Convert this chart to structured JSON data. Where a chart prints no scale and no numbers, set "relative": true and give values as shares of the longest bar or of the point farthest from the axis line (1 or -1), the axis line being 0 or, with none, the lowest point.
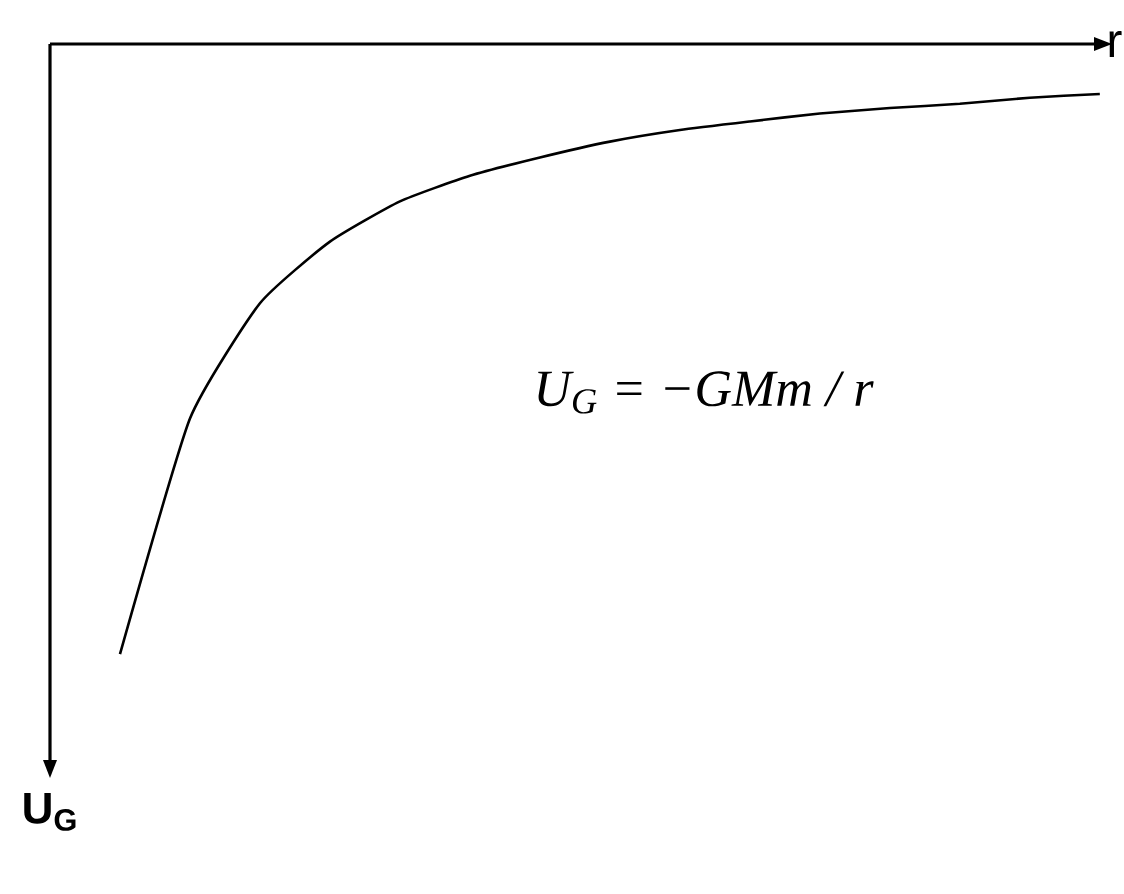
{
  "chart_data": {
    "type": "line",
    "relative": true,
    "xlabel": "r",
    "ylabel": "U$_{G}$",
    "color": "#000000",
    "marker": "none",
    "categories": [
      null,
      null,
      null,
      null,
      null,
      null,
      null,
      null,
      null,
      null,
      null,
      null,
      null,
      null,
      null
    ],
    "values": [
      -1,
      -0.614,
      -0.425,
      -0.324,
      -0.258,
      -0.216,
      -0.186,
      -0.16,
      -0.141,
      -0.127,
      -0.114,
      -0.105,
      -0.098,
      -0.088,
      -0.082
    ],
    "annotations": [
      "U$_{G}$ = −GMm / r"
    ]
  }
}
